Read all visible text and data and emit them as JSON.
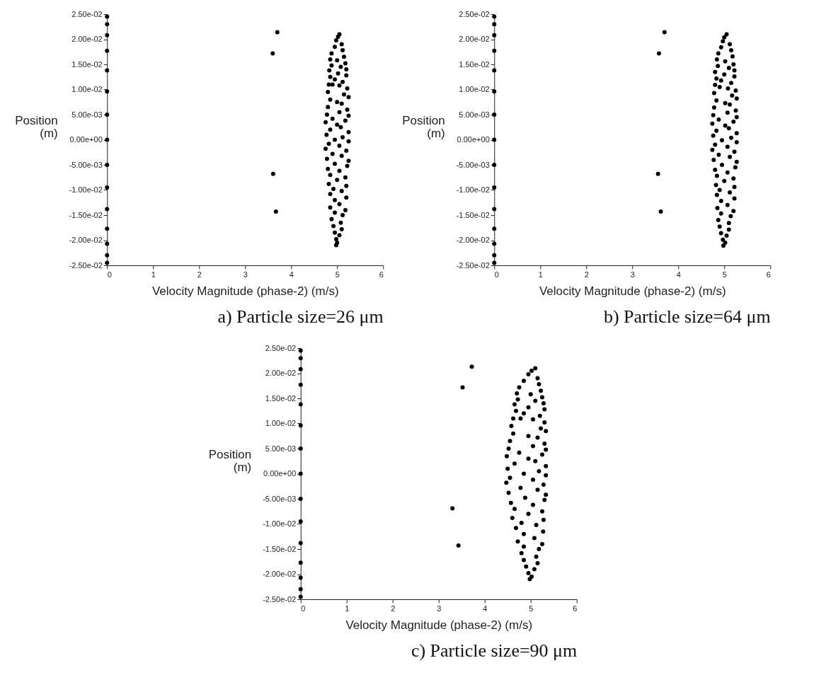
{
  "chart_data": [
    {
      "type": "scatter",
      "title": "a) Particle size=26 μm",
      "xlabel": "Velocity Magnitude (phase-2)  (m/s)",
      "ylabel": "Position (m)",
      "marker": "circle",
      "xlim": [
        0,
        6
      ],
      "xticks": [
        0,
        1,
        2,
        3,
        4,
        5,
        6
      ],
      "ylim": [
        -0.025,
        0.025
      ],
      "yticks": [
        {
          "value": -0.025,
          "label": "-2.50e-02"
        },
        {
          "value": -0.02,
          "label": "-2.00e-02"
        },
        {
          "value": -0.015,
          "label": "-1.50e-02"
        },
        {
          "value": -0.01,
          "label": "-1.00e-02"
        },
        {
          "value": -0.005,
          "label": "-5.00e-03"
        },
        {
          "value": 0,
          "label": "0.00e+00"
        },
        {
          "value": 0.005,
          "label": "5.00e-03"
        },
        {
          "value": 0.01,
          "label": "1.00e-02"
        },
        {
          "value": 0.015,
          "label": "1.50e-02"
        },
        {
          "value": 0.02,
          "label": "2.00e-02"
        },
        {
          "value": 0.025,
          "label": "2.50e-02"
        }
      ],
      "series": [
        {
          "color": "#000000",
          "x": [
            0,
            0,
            0,
            0,
            0,
            0,
            0,
            0,
            0,
            0,
            0,
            0,
            0,
            0,
            0,
            3.7,
            3.6,
            3.61,
            3.67,
            5.05,
            5.02,
            4.98,
            5.1,
            4.95,
            5.12,
            4.88,
            5.15,
            4.85,
            5.0,
            5.18,
            4.88,
            5.08,
            5.2,
            4.83,
            5.02,
            5.2,
            4.85,
            4.95,
            5.12,
            4.82,
            4.9,
            5.05,
            5.22,
            4.8,
            5.15,
            5.25,
            4.85,
            5.0,
            5.1,
            4.8,
            5.22,
            5.05,
            4.78,
            5.25,
            4.9,
            5.18,
            4.75,
            5.0,
            5.08,
            4.85,
            5.25,
            4.77,
            5.12,
            4.95,
            5.25,
            4.82,
            5.05,
            4.75,
            5.2,
            4.9,
            5.1,
            4.78,
            5.25,
            4.95,
            5.22,
            4.8,
            5.05,
            4.85,
            5.18,
            5.0,
            4.82,
            5.2,
            4.92,
            5.1,
            4.85,
            5.2,
            4.95,
            5.05,
            4.85,
            5.18,
            4.95,
            5.12,
            4.88,
            5.08,
            4.92,
            5.1,
            4.95,
            5.05,
            4.98,
            5.0,
            4.98
          ],
          "values": [
            0.0245,
            0.023,
            0.0208,
            0.0177,
            0.0138,
            0.0096,
            0.005,
            0,
            -0.005,
            -0.0095,
            -0.0138,
            -0.0177,
            -0.0207,
            -0.023,
            -0.0245,
            0.0214,
            0.0172,
            -0.0068,
            -0.0143,
            0.021,
            0.0205,
            0.0198,
            0.019,
            0.0185,
            0.0178,
            0.0172,
            0.0165,
            0.016,
            0.0158,
            0.0152,
            0.0148,
            0.0145,
            0.014,
            0.0138,
            0.0132,
            0.0128,
            0.0125,
            0.012,
            0.0115,
            0.011,
            0.011,
            0.0108,
            0.0102,
            0.0095,
            0.009,
            0.0085,
            0.008,
            0.0075,
            0.0072,
            0.0065,
            0.006,
            0.0055,
            0.005,
            0.0048,
            0.0042,
            0.0038,
            0.0035,
            0.003,
            0.0025,
            0.002,
            0.0015,
            0.001,
            0.0005,
            0,
            -0.0003,
            -0.0008,
            -0.0012,
            -0.0018,
            -0.0022,
            -0.0028,
            -0.0032,
            -0.0038,
            -0.0042,
            -0.0048,
            -0.0052,
            -0.0058,
            -0.0062,
            -0.007,
            -0.0075,
            -0.008,
            -0.0088,
            -0.0092,
            -0.0098,
            -0.0102,
            -0.0108,
            -0.0115,
            -0.012,
            -0.0128,
            -0.0135,
            -0.014,
            -0.0145,
            -0.015,
            -0.0158,
            -0.0165,
            -0.0172,
            -0.0178,
            -0.0185,
            -0.019,
            -0.0198,
            -0.0205,
            -0.021
          ]
        }
      ]
    },
    {
      "type": "scatter",
      "title": "b) Particle size=64 μm",
      "xlabel": "Velocity Magnitude (phase-2)  (m/s)",
      "ylabel": "Position (m)",
      "marker": "circle",
      "xlim": [
        0,
        6
      ],
      "xticks": [
        0,
        1,
        2,
        3,
        4,
        5,
        6
      ],
      "ylim": [
        -0.025,
        0.025
      ],
      "yticks": [
        {
          "value": -0.025,
          "label": "-2.50e-02"
        },
        {
          "value": -0.02,
          "label": "-2.00e-02"
        },
        {
          "value": -0.015,
          "label": "-1.50e-02"
        },
        {
          "value": -0.01,
          "label": "-1.00e-02"
        },
        {
          "value": -0.005,
          "label": "-5.00e-03"
        },
        {
          "value": 0,
          "label": "0.00e+00"
        },
        {
          "value": 0.005,
          "label": "5.00e-03"
        },
        {
          "value": 0.01,
          "label": "1.00e-02"
        },
        {
          "value": 0.015,
          "label": "1.50e-02"
        },
        {
          "value": 0.02,
          "label": "2.00e-02"
        },
        {
          "value": 0.025,
          "label": "2.50e-02"
        }
      ],
      "series": [
        {
          "color": "#000000",
          "x": [
            0,
            0,
            0,
            0,
            0,
            0,
            0,
            0,
            0,
            0,
            0,
            0,
            0,
            0,
            0,
            3.7,
            3.58,
            3.56,
            3.62,
            5.05,
            5.0,
            4.97,
            5.12,
            4.93,
            5.15,
            4.87,
            5.18,
            4.84,
            5.02,
            5.2,
            4.86,
            5.1,
            5.22,
            4.8,
            5.0,
            5.22,
            4.83,
            4.93,
            5.15,
            4.8,
            4.9,
            5.08,
            5.25,
            4.78,
            5.17,
            5.27,
            4.83,
            5.02,
            5.12,
            4.78,
            5.25,
            5.07,
            4.76,
            5.27,
            4.88,
            5.2,
            4.74,
            5.02,
            5.1,
            4.83,
            5.27,
            4.76,
            5.15,
            4.95,
            5.27,
            4.8,
            5.07,
            4.74,
            5.22,
            4.88,
            5.12,
            4.77,
            5.27,
            4.95,
            5.24,
            4.8,
            5.07,
            4.84,
            5.2,
            5.0,
            4.82,
            5.22,
            4.9,
            5.12,
            4.84,
            5.22,
            4.93,
            5.07,
            4.85,
            5.2,
            4.93,
            5.14,
            4.87,
            5.1,
            4.9,
            5.1,
            4.93,
            5.05,
            4.97,
            5.02,
            4.98
          ],
          "values": [
            0.0245,
            0.023,
            0.0208,
            0.0177,
            0.0138,
            0.0096,
            0.005,
            0,
            -0.005,
            -0.0095,
            -0.0138,
            -0.0177,
            -0.0207,
            -0.023,
            -0.0245,
            0.0214,
            0.0172,
            -0.0068,
            -0.0143,
            0.021,
            0.0204,
            0.0196,
            0.019,
            0.0184,
            0.0178,
            0.0172,
            0.0166,
            0.016,
            0.0156,
            0.015,
            0.0147,
            0.0143,
            0.0138,
            0.0135,
            0.013,
            0.0126,
            0.0122,
            0.0118,
            0.0113,
            0.0109,
            0.0105,
            0.0102,
            0.0098,
            0.0093,
            0.0088,
            0.0082,
            0.0078,
            0.0073,
            0.007,
            0.0064,
            0.0058,
            0.0054,
            0.0049,
            0.0045,
            0.004,
            0.0036,
            0.0032,
            0.0028,
            0.0023,
            0.0018,
            0.0013,
            0.0008,
            0.0004,
            -0.0001,
            -0.0005,
            -0.001,
            -0.0014,
            -0.002,
            -0.0024,
            -0.003,
            -0.0034,
            -0.004,
            -0.0044,
            -0.005,
            -0.0055,
            -0.006,
            -0.0065,
            -0.0072,
            -0.0077,
            -0.0082,
            -0.009,
            -0.0094,
            -0.01,
            -0.0105,
            -0.011,
            -0.0117,
            -0.0122,
            -0.013,
            -0.0136,
            -0.0142,
            -0.0147,
            -0.0152,
            -0.016,
            -0.0166,
            -0.0173,
            -0.0179,
            -0.0186,
            -0.0191,
            -0.0199,
            -0.0205,
            -0.0211
          ]
        }
      ]
    },
    {
      "type": "scatter",
      "title": "c) Particle size=90 μm",
      "xlabel": "Velocity Magnitude (phase-2)  (m/s)",
      "ylabel": "Position (m)",
      "marker": "circle",
      "xlim": [
        0,
        6
      ],
      "xticks": [
        0,
        1,
        2,
        3,
        4,
        5,
        6
      ],
      "ylim": [
        -0.025,
        0.025
      ],
      "yticks": [
        {
          "value": -0.025,
          "label": "-2.50e-02"
        },
        {
          "value": -0.02,
          "label": "-2.00e-02"
        },
        {
          "value": -0.015,
          "label": "-1.50e-02"
        },
        {
          "value": -0.01,
          "label": "-1.00e-02"
        },
        {
          "value": -0.005,
          "label": "-5.00e-03"
        },
        {
          "value": 0,
          "label": "0.00e+00"
        },
        {
          "value": 0.005,
          "label": "5.00e-03"
        },
        {
          "value": 0.01,
          "label": "1.00e-02"
        },
        {
          "value": 0.015,
          "label": "1.50e-02"
        },
        {
          "value": 0.02,
          "label": "2.00e-02"
        },
        {
          "value": 0.025,
          "label": "2.50e-02"
        }
      ],
      "series": [
        {
          "color": "#000000",
          "x": [
            0,
            0,
            0,
            0,
            0,
            0,
            0,
            0,
            0,
            0,
            0,
            0,
            0,
            0,
            0,
            3.72,
            3.52,
            3.3,
            3.43,
            5.1,
            5.02,
            4.95,
            5.15,
            4.85,
            5.18,
            4.75,
            5.22,
            4.7,
            5.0,
            5.25,
            4.72,
            5.1,
            5.28,
            4.65,
            4.95,
            5.3,
            4.68,
            4.85,
            5.2,
            4.62,
            4.78,
            5.05,
            5.3,
            4.58,
            5.22,
            5.33,
            4.62,
            4.95,
            5.15,
            4.55,
            5.3,
            5.05,
            4.52,
            5.33,
            4.75,
            5.25,
            4.48,
            4.95,
            5.1,
            4.65,
            5.33,
            4.5,
            5.18,
            4.85,
            5.33,
            4.55,
            5.05,
            4.47,
            5.28,
            4.78,
            5.15,
            4.52,
            5.33,
            4.88,
            5.3,
            4.57,
            5.05,
            4.65,
            5.25,
            4.95,
            4.6,
            5.28,
            4.8,
            5.12,
            4.68,
            5.27,
            4.85,
            5.08,
            4.72,
            5.25,
            4.85,
            5.18,
            4.8,
            5.12,
            4.85,
            5.15,
            4.9,
            5.08,
            4.95,
            5.02,
            4.98
          ],
          "values": [
            0.0245,
            0.023,
            0.0208,
            0.0177,
            0.0138,
            0.0096,
            0.005,
            0,
            -0.005,
            -0.0095,
            -0.0138,
            -0.0177,
            -0.0207,
            -0.023,
            -0.0245,
            0.0213,
            0.0172,
            -0.0069,
            -0.0143,
            0.021,
            0.0205,
            0.0198,
            0.019,
            0.0185,
            0.0178,
            0.0172,
            0.0165,
            0.016,
            0.0158,
            0.0152,
            0.0148,
            0.0145,
            0.014,
            0.0138,
            0.0132,
            0.0128,
            0.0125,
            0.012,
            0.0115,
            0.011,
            0.011,
            0.0108,
            0.0102,
            0.0095,
            0.009,
            0.0085,
            0.008,
            0.0075,
            0.0072,
            0.0065,
            0.006,
            0.0055,
            0.005,
            0.0048,
            0.0042,
            0.0038,
            0.0035,
            0.003,
            0.0025,
            0.002,
            0.0015,
            0.001,
            0.0005,
            0,
            -0.0003,
            -0.0008,
            -0.0012,
            -0.0018,
            -0.0022,
            -0.0028,
            -0.0032,
            -0.0038,
            -0.0042,
            -0.0048,
            -0.0052,
            -0.0058,
            -0.0062,
            -0.007,
            -0.0075,
            -0.008,
            -0.0088,
            -0.0092,
            -0.0098,
            -0.0102,
            -0.0108,
            -0.0115,
            -0.012,
            -0.0128,
            -0.0135,
            -0.014,
            -0.0145,
            -0.015,
            -0.0158,
            -0.0165,
            -0.0172,
            -0.0178,
            -0.0185,
            -0.019,
            -0.0198,
            -0.0205,
            -0.021
          ]
        }
      ]
    }
  ]
}
